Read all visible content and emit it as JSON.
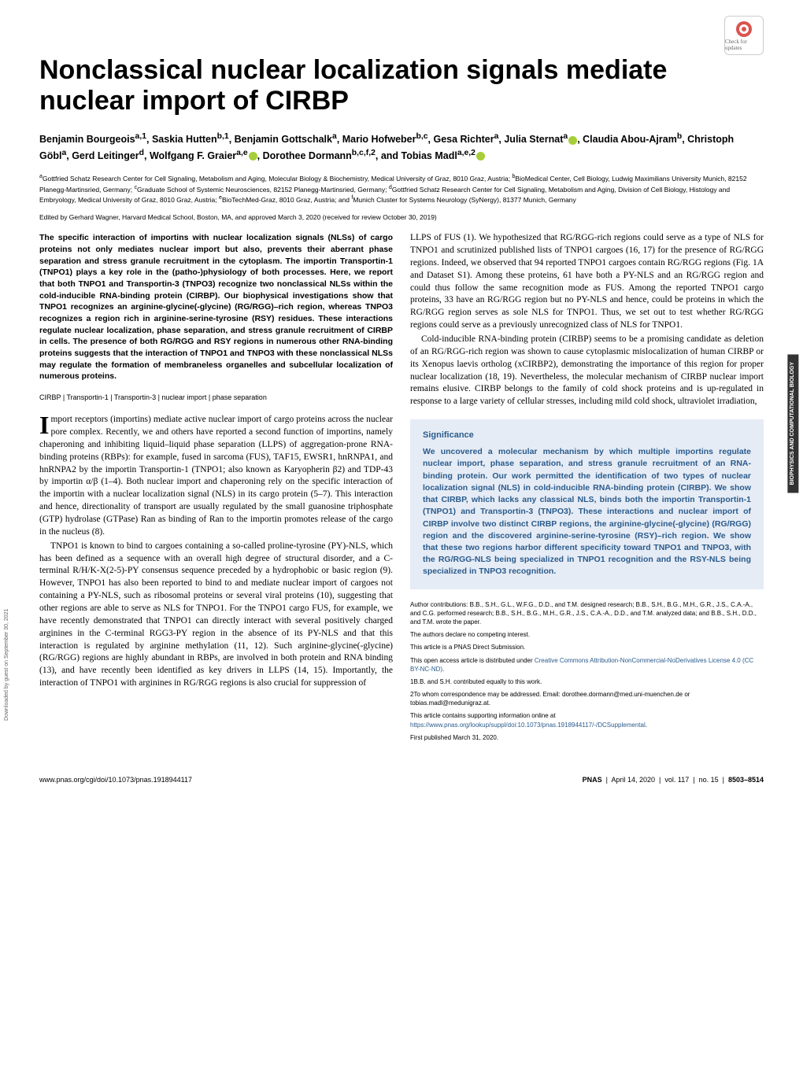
{
  "check_updates": {
    "label": "Check for updates"
  },
  "title": "Nonclassical nuclear localization signals mediate nuclear import of CIRBP",
  "authors_html": "Benjamin Bourgeois<sup>a,1</sup>, Saskia Hutten<sup>b,1</sup>, Benjamin Gottschalk<sup>a</sup>, Mario Hofweber<sup>b,c</sup>, Gesa Richter<sup>a</sup>, Julia Sternat<sup>a</sup><span class=\"orcid\"></span>, Claudia Abou-Ajram<sup>b</sup>, Christoph Göbl<sup>a</sup>, Gerd Leitinger<sup>d</sup>, Wolfgang F. Graier<sup>a,e</sup><span class=\"orcid\"></span>, Dorothee Dormann<sup>b,c,f,2</sup>, and Tobias Madl<sup>a,e,2</sup><span class=\"orcid\"></span>",
  "affiliations_html": "<sup>a</sup>Gottfried Schatz Research Center for Cell Signaling, Metabolism and Aging, Molecular Biology & Biochemistry, Medical University of Graz, 8010 Graz, Austria; <sup>b</sup>BioMedical Center, Cell Biology, Ludwig Maximilians University Munich, 82152 Planegg-Martinsried, Germany; <sup>c</sup>Graduate School of Systemic Neurosciences, 82152 Planegg-Martinsried, Germany; <sup>d</sup>Gottfried Schatz Research Center for Cell Signaling, Metabolism and Aging, Division of Cell Biology, Histology and Embryology, Medical University of Graz, 8010 Graz, Austria; <sup>e</sup>BioTechMed-Graz, 8010 Graz, Austria; and <sup>f</sup>Munich Cluster for Systems Neurology (SyNergy), 81377 Munich, Germany",
  "edited": "Edited by Gerhard Wagner, Harvard Medical School, Boston, MA, and approved March 3, 2020 (received for review October 30, 2019)",
  "abstract": "The specific interaction of importins with nuclear localization signals (NLSs) of cargo proteins not only mediates nuclear import but also, prevents their aberrant phase separation and stress granule recruitment in the cytoplasm. The importin Transportin-1 (TNPO1) plays a key role in the (patho-)physiology of both processes. Here, we report that both TNPO1 and Transportin-3 (TNPO3) recognize two nonclassical NLSs within the cold-inducible RNA-binding protein (CIRBP). Our biophysical investigations show that TNPO1 recognizes an arginine-glycine(-glycine) (RG/RGG)–rich region, whereas TNPO3 recognizes a region rich in arginine-serine-tyrosine (RSY) residues. These interactions regulate nuclear localization, phase separation, and stress granule recruitment of CIRBP in cells. The presence of both RG/RGG and RSY regions in numerous other RNA-binding proteins suggests that the interaction of TNPO1 and TNPO3 with these nonclassical NLSs may regulate the formation of membraneless organelles and subcellular localization of numerous proteins.",
  "keywords": "CIRBP | Transportin-1 | Transportin-3 | nuclear import | phase separation",
  "col1": {
    "p1_first": "I",
    "p1_rest": "mport receptors (importins) mediate active nuclear import of cargo proteins across the nuclear pore complex. Recently, we and others have reported a second function of importins, namely chaperoning and inhibiting liquid–liquid phase separation (LLPS) of aggregation-prone RNA-binding proteins (RBPs): for example, fused in sarcoma (FUS), TAF15, EWSR1, hnRNPA1, and hnRNPA2 by the importin Transportin-1 (TNPO1; also known as Karyopherin β2) and TDP-43 by importin α/β (1–4). Both nuclear import and chaperoning rely on the specific interaction of the importin with a nuclear localization signal (NLS) in its cargo protein (5–7). This interaction and hence, directionality of transport are usually regulated by the small guanosine triphosphate (GTP) hydrolase (GTPase) Ran as binding of Ran to the importin promotes release of the cargo in the nucleus (8).",
    "p2": "TNPO1 is known to bind to cargoes containing a so-called proline-tyrosine (PY)-NLS, which has been defined as a sequence with an overall high degree of structural disorder, and a C-terminal R/H/K-X(2-5)-PY consensus sequence preceded by a hydrophobic or basic region (9). However, TNPO1 has also been reported to bind to and mediate nuclear import of cargoes not containing a PY-NLS, such as ribosomal proteins or several viral proteins (10), suggesting that other regions are able to serve as NLS for TNPO1. For the TNPO1 cargo FUS, for example, we have recently demonstrated that TNPO1 can directly interact with several positively charged arginines in the C-terminal RGG3-PY region in the absence of its PY-NLS and that this interaction is regulated by arginine methylation (11, 12). Such arginine-glycine(-glycine) (RG/RGG) regions are highly abundant in RBPs, are involved in both protein and RNA binding (13), and have recently been identified as key drivers in LLPS (14, 15). Importantly, the interaction of TNPO1 with arginines in RG/RGG regions is also crucial for suppression of"
  },
  "col2": {
    "p1": "LLPS of FUS (1). We hypothesized that RG/RGG-rich regions could serve as a type of NLS for TNPO1 and scrutinized published lists of TNPO1 cargoes (16, 17) for the presence of RG/RGG regions. Indeed, we observed that 94 reported TNPO1 cargoes contain RG/RGG regions (Fig. 1A and Dataset S1). Among these proteins, 61 have both a PY-NLS and an RG/RGG region and could thus follow the same recognition mode as FUS. Among the reported TNPO1 cargo proteins, 33 have an RG/RGG region but no PY-NLS and hence, could be proteins in which the RG/RGG region serves as sole NLS for TNPO1. Thus, we set out to test whether RG/RGG regions could serve as a previously unrecognized class of NLS for TNPO1.",
    "p2": "Cold-inducible RNA-binding protein (CIRBP) seems to be a promising candidate as deletion of an RG/RGG-rich region was shown to cause cytoplasmic mislocalization of human CIRBP or its Xenopus laevis ortholog (xCIRBP2), demonstrating the importance of this region for proper nuclear localization (18, 19). Nevertheless, the molecular mechanism of CIRBP nuclear import remains elusive. CIRBP belongs to the family of cold shock proteins and is up-regulated in response to a large variety of cellular stresses, including mild cold shock, ultraviolet irradiation,"
  },
  "significance": {
    "head": "Significance",
    "body": "We uncovered a molecular mechanism by which multiple importins regulate nuclear import, phase separation, and stress granule recruitment of an RNA-binding protein. Our work permitted the identification of two types of nuclear localization signal (NLS) in cold-inducible RNA-binding protein (CIRBP). We show that CIRBP, which lacks any classical NLS, binds both the importin Transportin-1 (TNPO1) and Transportin-3 (TNPO3). These interactions and nuclear import of CIRBP involve two distinct CIRBP regions, the arginine-glycine(-glycine) (RG/RGG) region and the discovered arginine-serine-tyrosine (RSY)–rich region. We show that these two regions harbor different specificity toward TNPO1 and TNPO3, with the RG/RGG-NLS being specialized in TNPO1 recognition and the RSY-NLS being specialized in TNPO3 recognition."
  },
  "footnotes": {
    "contrib": "Author contributions: B.B., S.H., G.L., W.F.G., D.D., and T.M. designed research; B.B., S.H., B.G., M.H., G.R., J.S., C.A.-A., and C.G. performed research; B.B., S.H., B.G., M.H., G.R., J.S., C.A.-A., D.D., and T.M. analyzed data; and B.B., S.H., D.D., and T.M. wrote the paper.",
    "coi": "The authors declare no competing interest.",
    "direct": "This article is a PNAS Direct Submission.",
    "license_pre": "This open access article is distributed under ",
    "license_link": "Creative Commons Attribution-NonCommercial-NoDerivatives License 4.0 (CC BY-NC-ND)",
    "equal": "1B.B. and S.H. contributed equally to this work.",
    "corr": "2To whom correspondence may be addressed. Email: dorothee.dormann@med.uni-muenchen.de or tobias.madl@medunigraz.at.",
    "suppl_pre": "This article contains supporting information online at ",
    "suppl_link": "https://www.pnas.org/lookup/suppl/doi:10.1073/pnas.1918944117/-/DCSupplemental",
    "pub": "First published March 31, 2020."
  },
  "footer": {
    "doi": "www.pnas.org/cgi/doi/10.1073/pnas.1918944117",
    "journal": "PNAS",
    "date": "April 14, 2020",
    "vol": "vol. 117",
    "no": "no. 15",
    "pages": "8503–8514"
  },
  "side_left": "Downloaded by guest on September 30, 2021",
  "side_right": "BIOPHYSICS AND COMPUTATIONAL BIOLOGY",
  "colors": {
    "sig_bg": "#e6ecf5",
    "sig_text": "#2a5b8c",
    "link": "#2a5b8c",
    "orcid": "#a6ce39"
  }
}
